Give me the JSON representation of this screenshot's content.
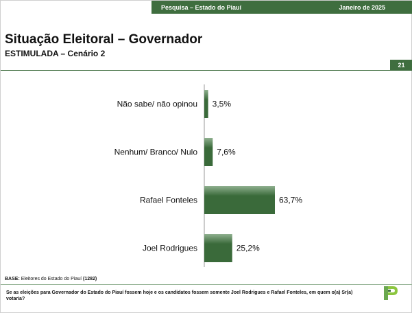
{
  "header": {
    "survey_label": "Pesquisa – Estado do Piauí",
    "date_label": "Janeiro de 2025",
    "page_number": "21"
  },
  "title": "Situação Eleitoral – Governador",
  "subtitle": "ESTIMULADA – Cenário 2",
  "footer": {
    "base_label": "BASE:",
    "base_text": " Eleitores do Estado do Piauí ",
    "base_count": "(1282)",
    "question": "Se as eleições para Governador do Estado do Piauí fossem hoje e os candidatos fossem somente Joel Rodrigues e Rafael Fonteles, em quem o(a) Sr(a) votaria?"
  },
  "colors": {
    "accent": "#3f6e3f",
    "bar_dark": "#3a6a3a",
    "bar_light": "#8fb08f"
  },
  "logo_icon": "green-p-logo-icon",
  "chart_data": {
    "type": "bar",
    "orientation": "horizontal",
    "categories": [
      "Não sabe/ não opinou",
      "Nenhum/ Branco/ Nulo",
      "Rafael Fonteles",
      "Joel Rodrigues"
    ],
    "values": [
      3.5,
      7.6,
      63.7,
      25.2
    ],
    "value_labels": [
      "3,5%",
      "7,6%",
      "63,7%",
      "25,2%"
    ],
    "xlim": [
      0,
      63.7
    ]
  }
}
